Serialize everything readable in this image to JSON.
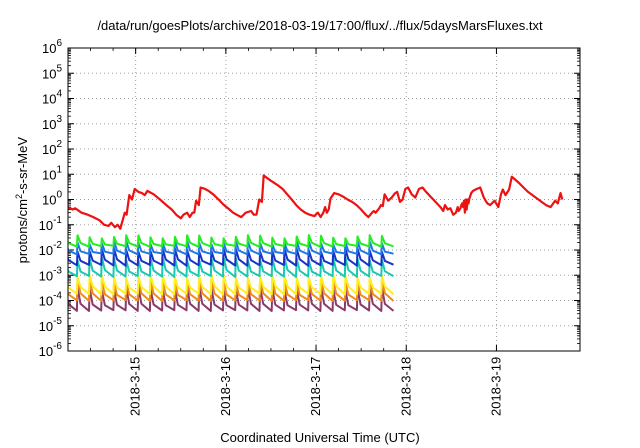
{
  "chart_data": {
    "type": "line",
    "title": "/data/run/goesPlots/archive/2018-03-19/17:00/flux/../flux/5daysMarsFluxes.txt",
    "xlabel": "Coordinated Universal Time (UTC)",
    "ylabel_main": "protons/cm",
    "ylabel_sup": "2",
    "ylabel_rest": "-s-sr-MeV",
    "x_tick_labels": [
      "2018-3-15",
      "2018-3-16",
      "2018-3-17",
      "2018-3-18",
      "2018-3-19"
    ],
    "x_range_days": [
      -0.75,
      2.73
    ],
    "y_scale": "log",
    "ylim": [
      1e-06,
      1000000.0
    ],
    "y_tick_exponents": [
      -6,
      -5,
      -4,
      -3,
      -2,
      -1,
      0,
      1,
      2,
      3,
      4,
      5,
      6
    ],
    "grid": true,
    "legend": "none",
    "series": [
      {
        "color": "#ee1111",
        "points": [
          [
            -0.75,
            0.5
          ],
          [
            -0.7,
            0.4
          ],
          [
            -0.67,
            0.45
          ],
          [
            -0.6,
            0.3
          ],
          [
            -0.53,
            0.25
          ],
          [
            -0.47,
            0.2
          ],
          [
            -0.4,
            0.15
          ],
          [
            -0.35,
            0.1
          ],
          [
            -0.3,
            0.09
          ],
          [
            -0.27,
            0.12
          ],
          [
            -0.23,
            0.08
          ],
          [
            -0.2,
            0.1
          ],
          [
            -0.17,
            0.07
          ],
          [
            -0.12,
            0.3
          ],
          [
            -0.1,
            0.25
          ],
          [
            -0.07,
            1.5
          ],
          [
            -0.04,
            1.0
          ],
          [
            -0.01,
            2.6
          ],
          [
            0.03,
            2.0
          ],
          [
            0.07,
            1.8
          ],
          [
            0.1,
            1.5
          ],
          [
            0.13,
            2.2
          ],
          [
            0.2,
            1.6
          ],
          [
            0.27,
            1.0
          ],
          [
            0.34,
            0.6
          ],
          [
            0.4,
            0.4
          ],
          [
            0.45,
            0.25
          ],
          [
            0.5,
            0.18
          ],
          [
            0.53,
            0.25
          ],
          [
            0.57,
            0.3
          ],
          [
            0.6,
            0.2
          ],
          [
            0.63,
            0.3
          ],
          [
            0.65,
            0.3
          ],
          [
            0.67,
            0.9
          ],
          [
            0.7,
            0.6
          ],
          [
            0.72,
            3.0
          ],
          [
            0.76,
            2.7
          ],
          [
            0.8,
            2.3
          ],
          [
            0.86,
            1.6
          ],
          [
            0.92,
            1.0
          ],
          [
            0.98,
            0.6
          ],
          [
            1.04,
            0.4
          ],
          [
            1.08,
            0.3
          ],
          [
            1.12,
            0.25
          ],
          [
            1.17,
            0.2
          ],
          [
            1.22,
            0.3
          ],
          [
            1.28,
            0.35
          ],
          [
            1.31,
            0.25
          ],
          [
            1.34,
            0.25
          ],
          [
            1.37,
            1.0
          ],
          [
            1.4,
            0.8
          ],
          [
            1.42,
            9.0
          ],
          [
            1.46,
            7.0
          ],
          [
            1.5,
            5.5
          ],
          [
            1.57,
            3.8
          ],
          [
            1.63,
            2.6
          ],
          [
            1.68,
            1.6
          ],
          [
            1.73,
            1.0
          ],
          [
            1.78,
            0.6
          ],
          [
            1.83,
            0.4
          ],
          [
            1.88,
            0.3
          ],
          [
            1.93,
            0.25
          ],
          [
            1.98,
            0.22
          ],
          [
            2.02,
            0.3
          ],
          [
            2.05,
            0.2
          ],
          [
            2.08,
            0.3
          ],
          [
            2.1,
            0.5
          ],
          [
            2.12,
            0.3
          ],
          [
            2.14,
            0.4
          ],
          [
            2.16,
            1.1
          ],
          [
            2.2,
            1.8
          ],
          [
            2.25,
            1.6
          ],
          [
            2.3,
            1.3
          ],
          [
            2.35,
            1.0
          ],
          [
            2.4,
            0.8
          ],
          [
            2.45,
            0.6
          ],
          [
            2.5,
            0.4
          ],
          [
            2.55,
            0.25
          ],
          [
            2.58,
            0.2
          ],
          [
            2.62,
            0.3
          ],
          [
            2.64,
            0.35
          ],
          [
            2.66,
            0.3
          ],
          [
            2.7,
            0.45
          ],
          [
            2.72,
            0.6
          ],
          [
            2.74,
            0.55
          ],
          [
            2.76,
            1.6
          ],
          [
            2.8,
            0.9
          ],
          [
            2.84,
            1.2
          ],
          [
            2.87,
            1.7
          ],
          [
            2.9,
            2.0
          ],
          [
            2.93,
            0.8
          ],
          [
            2.96,
            1.0
          ],
          [
            2.99,
            2.6
          ],
          [
            3.02,
            3.0
          ],
          [
            3.06,
            1.6
          ],
          [
            3.1,
            1.2
          ],
          [
            3.14,
            2.6
          ],
          [
            3.18,
            3.0
          ],
          [
            3.22,
            2.0
          ],
          [
            3.26,
            1.4
          ],
          [
            3.3,
            1.0
          ],
          [
            3.34,
            0.7
          ],
          [
            3.38,
            0.5
          ],
          [
            3.41,
            0.35
          ],
          [
            3.43,
            0.6
          ],
          [
            3.46,
            0.4
          ],
          [
            3.49,
            0.45
          ],
          [
            3.52,
            0.25
          ],
          [
            3.55,
            0.3
          ],
          [
            3.57,
            0.5
          ],
          [
            3.58,
            0.35
          ],
          [
            3.6,
            0.45
          ],
          [
            3.61,
            0.6
          ],
          [
            3.62,
            0.7
          ],
          [
            3.63,
            0.5
          ],
          [
            3.64,
            0.9
          ],
          [
            3.65,
            0.3
          ],
          [
            3.66,
            1.0
          ],
          [
            3.67,
            0.4
          ],
          [
            3.68,
            1.0
          ],
          [
            3.69,
            0.7
          ],
          [
            3.7,
            1.1
          ],
          [
            3.72,
            1.8
          ],
          [
            3.74,
            2.2
          ],
          [
            3.78,
            2.6
          ],
          [
            3.82,
            3.0
          ],
          [
            3.86,
            1.2
          ],
          [
            3.88,
            0.9
          ],
          [
            3.9,
            0.7
          ],
          [
            3.93,
            0.6
          ],
          [
            3.98,
            0.9
          ],
          [
            4.02,
            0.5
          ],
          [
            4.05,
            1.6
          ],
          [
            4.07,
            2.5
          ],
          [
            4.1,
            1.5
          ],
          [
            4.14,
            2.5
          ],
          [
            4.17,
            8.0
          ],
          [
            4.2,
            6.5
          ],
          [
            4.25,
            4.5
          ],
          [
            4.3,
            3.0
          ],
          [
            4.35,
            2.0
          ],
          [
            4.4,
            1.5
          ],
          [
            4.45,
            1.1
          ],
          [
            4.5,
            0.8
          ],
          [
            4.55,
            0.6
          ],
          [
            4.6,
            0.5
          ],
          [
            4.65,
            0.9
          ],
          [
            4.68,
            0.7
          ],
          [
            4.71,
            1.8
          ],
          [
            4.73,
            1.0
          ]
        ]
      },
      {
        "color": "#22ee22",
        "base": 0.018,
        "spike": 0.034,
        "trough": 0.014
      },
      {
        "color": "#1f77e8",
        "base": 0.009,
        "spike": 0.02,
        "trough": 0.007
      },
      {
        "color": "#1733c8",
        "base": 0.004,
        "spike": 0.01,
        "trough": 0.0025
      },
      {
        "color": "#1bc8b0",
        "base": 0.0015,
        "spike": 0.0045,
        "trough": 0.0009
      },
      {
        "color": "#ffee22",
        "base": 0.00035,
        "spike": 0.0009,
        "trough": 0.00018
      },
      {
        "color": "#f28a1a",
        "base": 0.00018,
        "spike": 0.0006,
        "trough": 0.0001
      },
      {
        "color": "#8a3a6a",
        "base": 7e-05,
        "spike": 0.0003,
        "trough": 4e-05
      }
    ]
  }
}
